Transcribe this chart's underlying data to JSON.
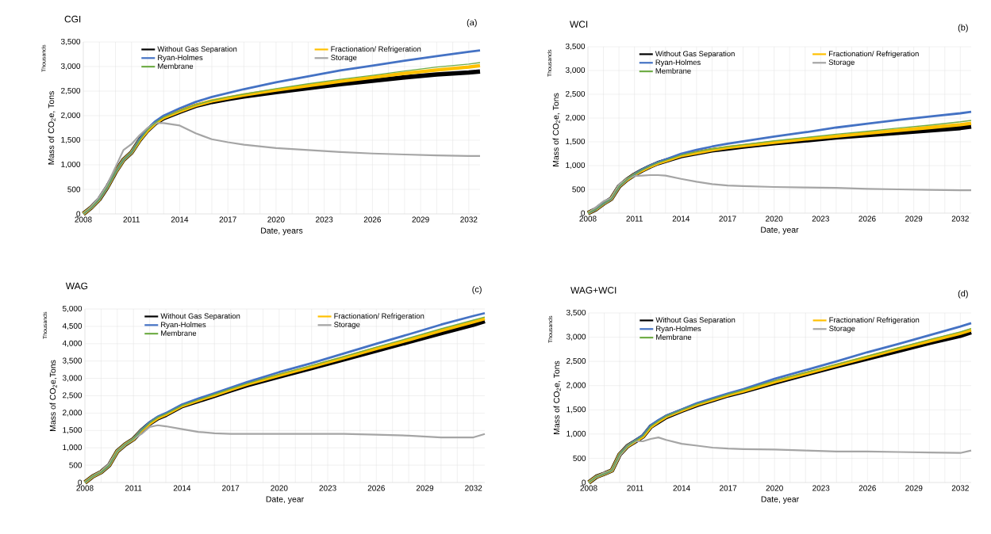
{
  "chart_data": [
    {
      "type": "line",
      "title": "CGI",
      "xlabel": "Date, years",
      "ylabel": "Mass of CO$_{2}$e,  Tons",
      "annotations": [
        "(a)",
        "Thousands"
      ],
      "grid": true,
      "legend": "top",
      "xlim": [
        2008,
        2032.7
      ],
      "ylim": [
        0,
        3500
      ],
      "xticks": [
        2008,
        {
          "value": 2009,
          "label": null
        },
        {
          "value": 2010,
          "label": null
        },
        2011,
        {
          "value": 2012,
          "label": null
        },
        {
          "value": 2013,
          "label": null
        },
        2014,
        {
          "value": 2015,
          "label": null
        },
        {
          "value": 2016,
          "label": null
        },
        2017,
        {
          "value": 2018,
          "label": null
        },
        {
          "value": 2019,
          "label": null
        },
        2020,
        {
          "value": 2021,
          "label": null
        },
        {
          "value": 2022,
          "label": null
        },
        2023,
        {
          "value": 2024,
          "label": null
        },
        {
          "value": 2025,
          "label": null
        },
        2026,
        {
          "value": 2027,
          "label": null
        },
        {
          "value": 2028,
          "label": null
        },
        2029,
        {
          "value": 2030,
          "label": null
        },
        {
          "value": 2031,
          "label": null
        },
        2032
      ],
      "yticks": [
        0,
        500,
        {
          "value": 1000,
          "label": "1,000"
        },
        {
          "value": 1500,
          "label": "1,500"
        },
        {
          "value": 2000,
          "label": "2,000"
        },
        {
          "value": 2500,
          "label": "2,500"
        },
        {
          "value": 3000,
          "label": "3,000"
        },
        {
          "value": 3500,
          "label": "3,500"
        }
      ],
      "x": [
        2008,
        2008.5,
        2009,
        2009.5,
        2010,
        2010.5,
        2011,
        2011.5,
        2012,
        2012.5,
        2013,
        2014,
        2015,
        2016,
        2017,
        2018,
        2020,
        2022,
        2024,
        2026,
        2028,
        2030,
        2032,
        2032.7
      ],
      "series": [
        {
          "name": "Without Gas Separation",
          "color": "#000000",
          "values": [
            0,
            130,
            300,
            550,
            850,
            1100,
            1250,
            1500,
            1700,
            1850,
            1950,
            2080,
            2200,
            2280,
            2340,
            2390,
            2480,
            2560,
            2640,
            2710,
            2780,
            2840,
            2880,
            2900
          ]
        },
        {
          "name": "Fractionation/ Refrigeration",
          "color": "#ffc000",
          "values": [
            0,
            130,
            300,
            550,
            850,
            1100,
            1250,
            1500,
            1700,
            1850,
            1960,
            2090,
            2210,
            2300,
            2360,
            2420,
            2520,
            2610,
            2700,
            2780,
            2860,
            2930,
            2990,
            3020
          ]
        },
        {
          "name": "Ryan-Holmes",
          "color": "#4472c4",
          "values": [
            0,
            130,
            300,
            550,
            850,
            1100,
            1250,
            1520,
            1730,
            1890,
            2000,
            2150,
            2280,
            2380,
            2460,
            2540,
            2680,
            2800,
            2920,
            3020,
            3120,
            3210,
            3300,
            3330
          ]
        },
        {
          "name": "Storage",
          "color": "#a5a5a5",
          "values": [
            0,
            150,
            350,
            600,
            950,
            1300,
            1420,
            1600,
            1750,
            1850,
            1850,
            1800,
            1640,
            1520,
            1460,
            1410,
            1340,
            1300,
            1260,
            1230,
            1210,
            1190,
            1180,
            1180
          ]
        },
        {
          "name": "Membrane",
          "color": "#70ad47",
          "values": [
            0,
            130,
            300,
            550,
            850,
            1100,
            1250,
            1500,
            1710,
            1860,
            1970,
            2100,
            2220,
            2310,
            2380,
            2440,
            2550,
            2650,
            2740,
            2820,
            2910,
            2990,
            3050,
            3080
          ]
        }
      ]
    },
    {
      "type": "line",
      "title": "WCI",
      "xlabel": "Date, year",
      "ylabel": "Mass of CO$_{2}$e, Tons",
      "annotations": [
        "(b)",
        "Thousands"
      ],
      "grid": true,
      "legend": "top",
      "xlim": [
        2008,
        2032.7
      ],
      "ylim": [
        0,
        3500
      ],
      "xticks": [
        2008,
        {
          "value": 2009,
          "label": null
        },
        {
          "value": 2010,
          "label": null
        },
        2011,
        {
          "value": 2012,
          "label": null
        },
        {
          "value": 2013,
          "label": null
        },
        2014,
        {
          "value": 2015,
          "label": null
        },
        {
          "value": 2016,
          "label": null
        },
        2017,
        {
          "value": 2018,
          "label": null
        },
        {
          "value": 2019,
          "label": null
        },
        2020,
        {
          "value": 2021,
          "label": null
        },
        {
          "value": 2022,
          "label": null
        },
        2023,
        {
          "value": 2024,
          "label": null
        },
        {
          "value": 2025,
          "label": null
        },
        2026,
        {
          "value": 2027,
          "label": null
        },
        {
          "value": 2028,
          "label": null
        },
        2029,
        {
          "value": 2030,
          "label": null
        },
        {
          "value": 2031,
          "label": null
        },
        2032
      ],
      "yticks": [
        0,
        500,
        {
          "value": 1000,
          "label": "1,000"
        },
        {
          "value": 1500,
          "label": "1,500"
        },
        {
          "value": 2000,
          "label": "2,000"
        },
        {
          "value": 2500,
          "label": "2,500"
        },
        {
          "value": 3000,
          "label": "3,000"
        },
        {
          "value": 3500,
          "label": "3,500"
        }
      ],
      "x": [
        2008,
        2008.5,
        2009,
        2009.5,
        2010,
        2010.5,
        2011,
        2011.5,
        2012,
        2012.5,
        2013,
        2014,
        2015,
        2016,
        2017,
        2018,
        2020,
        2022,
        2024,
        2026,
        2028,
        2030,
        2032,
        2032.7
      ],
      "series": [
        {
          "name": "Without Gas Separation",
          "color": "#000000",
          "values": [
            0,
            80,
            200,
            300,
            560,
            700,
            810,
            900,
            980,
            1050,
            1100,
            1200,
            1260,
            1320,
            1360,
            1400,
            1470,
            1530,
            1590,
            1640,
            1690,
            1740,
            1790,
            1820
          ]
        },
        {
          "name": "Fractionation/ Refrigeration",
          "color": "#ffc000",
          "values": [
            0,
            80,
            200,
            300,
            560,
            700,
            810,
            900,
            980,
            1050,
            1100,
            1210,
            1270,
            1330,
            1380,
            1420,
            1490,
            1560,
            1620,
            1680,
            1740,
            1800,
            1860,
            1890
          ]
        },
        {
          "name": "Ryan-Holmes",
          "color": "#4472c4",
          "values": [
            0,
            80,
            200,
            300,
            560,
            710,
            820,
            920,
            1000,
            1070,
            1130,
            1250,
            1330,
            1400,
            1460,
            1510,
            1610,
            1700,
            1800,
            1880,
            1960,
            2030,
            2100,
            2130
          ]
        },
        {
          "name": "Storage",
          "color": "#a5a5a5",
          "values": [
            0,
            120,
            250,
            320,
            600,
            720,
            780,
            790,
            800,
            800,
            790,
            720,
            660,
            610,
            580,
            570,
            550,
            540,
            530,
            510,
            500,
            490,
            480,
            480
          ]
        },
        {
          "name": "Membrane",
          "color": "#70ad47",
          "values": [
            0,
            80,
            200,
            300,
            560,
            710,
            820,
            910,
            990,
            1060,
            1110,
            1220,
            1290,
            1350,
            1400,
            1440,
            1520,
            1590,
            1660,
            1720,
            1790,
            1850,
            1920,
            1950
          ]
        }
      ]
    },
    {
      "type": "line",
      "title": "WAG",
      "xlabel": "Date, year",
      "ylabel": "Mass of CO$_{2}$e,Tons",
      "annotations": [
        "(c)",
        "Thousands"
      ],
      "grid": true,
      "legend": "top",
      "xlim": [
        2008,
        2032.7
      ],
      "ylim": [
        0,
        5000
      ],
      "xticks": [
        2008,
        {
          "value": 2009,
          "label": null
        },
        {
          "value": 2010,
          "label": null
        },
        2011,
        {
          "value": 2012,
          "label": null
        },
        {
          "value": 2013,
          "label": null
        },
        2014,
        {
          "value": 2015,
          "label": null
        },
        {
          "value": 2016,
          "label": null
        },
        2017,
        {
          "value": 2018,
          "label": null
        },
        {
          "value": 2019,
          "label": null
        },
        2020,
        {
          "value": 2021,
          "label": null
        },
        {
          "value": 2022,
          "label": null
        },
        2023,
        {
          "value": 2024,
          "label": null
        },
        {
          "value": 2025,
          "label": null
        },
        2026,
        {
          "value": 2027,
          "label": null
        },
        {
          "value": 2028,
          "label": null
        },
        2029,
        {
          "value": 2030,
          "label": null
        },
        {
          "value": 2031,
          "label": null
        },
        2032
      ],
      "yticks": [
        0,
        500,
        {
          "value": 1000,
          "label": "1,000"
        },
        {
          "value": 1500,
          "label": "1,500"
        },
        {
          "value": 2000,
          "label": "2,000"
        },
        {
          "value": 2500,
          "label": "2,500"
        },
        {
          "value": 3000,
          "label": "3,000"
        },
        {
          "value": 3500,
          "label": "3,500"
        },
        {
          "value": 4000,
          "label": "4,000"
        },
        {
          "value": 4500,
          "label": "4,500"
        },
        {
          "value": 5000,
          "label": "5,000"
        }
      ],
      "x": [
        2008,
        2008.5,
        2009,
        2009.5,
        2010,
        2010.5,
        2011,
        2011.5,
        2012,
        2012.5,
        2013,
        2014,
        2015,
        2016,
        2017,
        2018,
        2020,
        2022,
        2024,
        2026,
        2028,
        2030,
        2032,
        2032.7
      ],
      "series": [
        {
          "name": "Without Gas Separation",
          "color": "#000000",
          "values": [
            0,
            180,
            300,
            500,
            900,
            1100,
            1250,
            1500,
            1700,
            1850,
            1950,
            2200,
            2350,
            2500,
            2650,
            2800,
            3050,
            3300,
            3550,
            3800,
            4050,
            4300,
            4550,
            4650
          ]
        },
        {
          "name": "Fractionation/ Refrigeration",
          "color": "#ffc000",
          "values": [
            0,
            180,
            300,
            500,
            900,
            1100,
            1250,
            1500,
            1700,
            1860,
            1960,
            2210,
            2370,
            2520,
            2680,
            2830,
            3090,
            3340,
            3600,
            3860,
            4110,
            4380,
            4630,
            4720
          ]
        },
        {
          "name": "Ryan-Holmes",
          "color": "#4472c4",
          "values": [
            0,
            180,
            300,
            500,
            900,
            1100,
            1260,
            1520,
            1740,
            1900,
            2000,
            2250,
            2420,
            2570,
            2730,
            2890,
            3180,
            3440,
            3720,
            4000,
            4270,
            4550,
            4800,
            4880
          ]
        },
        {
          "name": "Storage",
          "color": "#a5a5a5",
          "values": [
            0,
            180,
            320,
            550,
            900,
            1100,
            1250,
            1400,
            1600,
            1650,
            1620,
            1540,
            1460,
            1420,
            1400,
            1400,
            1400,
            1400,
            1400,
            1380,
            1350,
            1300,
            1300,
            1400
          ]
        },
        {
          "name": "Membrane",
          "color": "#70ad47",
          "values": [
            0,
            180,
            300,
            500,
            900,
            1100,
            1260,
            1510,
            1720,
            1880,
            1980,
            2220,
            2380,
            2540,
            2700,
            2850,
            3120,
            3370,
            3630,
            3900,
            4160,
            4430,
            4680,
            4770
          ]
        }
      ]
    },
    {
      "type": "line",
      "title": "WAG+WCI",
      "xlabel": "Date, year",
      "ylabel": "Mass of CO$_{2}$e, Tons",
      "annotations": [
        "(d)",
        "Thousands"
      ],
      "grid": true,
      "legend": "top",
      "xlim": [
        2008,
        2032.7
      ],
      "ylim": [
        0,
        3500
      ],
      "xticks": [
        2008,
        {
          "value": 2009,
          "label": null
        },
        {
          "value": 2010,
          "label": null
        },
        2011,
        {
          "value": 2012,
          "label": null
        },
        {
          "value": 2013,
          "label": null
        },
        2014,
        {
          "value": 2015,
          "label": null
        },
        {
          "value": 2016,
          "label": null
        },
        2017,
        {
          "value": 2018,
          "label": null
        },
        {
          "value": 2019,
          "label": null
        },
        2020,
        {
          "value": 2021,
          "label": null
        },
        {
          "value": 2022,
          "label": null
        },
        2023,
        {
          "value": 2024,
          "label": null
        },
        {
          "value": 2025,
          "label": null
        },
        2026,
        {
          "value": 2027,
          "label": null
        },
        {
          "value": 2028,
          "label": null
        },
        2029,
        {
          "value": 2030,
          "label": null
        },
        {
          "value": 2031,
          "label": null
        },
        2032
      ],
      "yticks": [
        0,
        500,
        {
          "value": 1000,
          "label": "1,000"
        },
        {
          "value": 1500,
          "label": "1,500"
        },
        {
          "value": 2000,
          "label": "2,000"
        },
        {
          "value": 2500,
          "label": "2,500"
        },
        {
          "value": 3000,
          "label": "3,000"
        },
        {
          "value": 3500,
          "label": "3,500"
        }
      ],
      "x": [
        2008,
        2008.5,
        2009,
        2009.5,
        2010,
        2010.5,
        2011,
        2011.5,
        2012,
        2012.5,
        2013,
        2014,
        2015,
        2016,
        2017,
        2018,
        2020,
        2022,
        2024,
        2026,
        2028,
        2030,
        2032,
        2032.7
      ],
      "series": [
        {
          "name": "Without Gas Separation",
          "color": "#000000",
          "values": [
            0,
            120,
            180,
            250,
            580,
            750,
            850,
            950,
            1150,
            1250,
            1350,
            1480,
            1600,
            1700,
            1800,
            1880,
            2060,
            2230,
            2400,
            2560,
            2720,
            2880,
            3030,
            3100
          ]
        },
        {
          "name": "Fractionation/ Refrigeration",
          "color": "#ffc000",
          "values": [
            0,
            120,
            180,
            250,
            580,
            750,
            850,
            950,
            1150,
            1260,
            1360,
            1490,
            1610,
            1710,
            1810,
            1890,
            2080,
            2250,
            2420,
            2590,
            2760,
            2920,
            3080,
            3150
          ]
        },
        {
          "name": "Ryan-Holmes",
          "color": "#4472c4",
          "values": [
            0,
            120,
            180,
            250,
            580,
            760,
            870,
            980,
            1180,
            1290,
            1380,
            1510,
            1640,
            1740,
            1840,
            1930,
            2140,
            2320,
            2500,
            2690,
            2860,
            3040,
            3220,
            3290
          ]
        },
        {
          "name": "Storage",
          "color": "#a5a5a5",
          "values": [
            0,
            120,
            200,
            250,
            550,
            750,
            850,
            850,
            900,
            930,
            880,
            800,
            760,
            720,
            700,
            690,
            680,
            660,
            640,
            640,
            630,
            620,
            610,
            660
          ]
        },
        {
          "name": "Membrane",
          "color": "#70ad47",
          "values": [
            0,
            120,
            180,
            250,
            580,
            750,
            860,
            960,
            1160,
            1270,
            1370,
            1500,
            1620,
            1720,
            1820,
            1910,
            2100,
            2270,
            2440,
            2610,
            2780,
            2950,
            3110,
            3180
          ]
        }
      ]
    }
  ]
}
